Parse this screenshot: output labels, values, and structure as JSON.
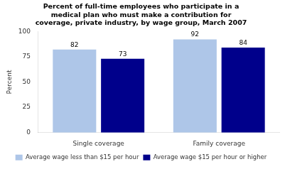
{
  "chart_data": {
    "type": "bar",
    "title": "Percent of full-time employees who participate in a\nmedical plan who must make a contribution for\ncoverage, private industry, by wage group, March 2007",
    "ylabel": "Percent",
    "categories": [
      "Single coverage",
      "Family coverage"
    ],
    "series": [
      {
        "name": "Average wage less than $15 per hour",
        "color": "#aec6e8",
        "values": [
          82,
          92
        ]
      },
      {
        "name": "Average wage $15 per hour or higher",
        "color": "#00008b",
        "values": [
          73,
          84
        ]
      }
    ],
    "ylim": [
      0,
      100
    ],
    "yticks": [
      0,
      25,
      50,
      75,
      100
    ],
    "grid": false,
    "legend": "bottom",
    "data_labels": true
  }
}
